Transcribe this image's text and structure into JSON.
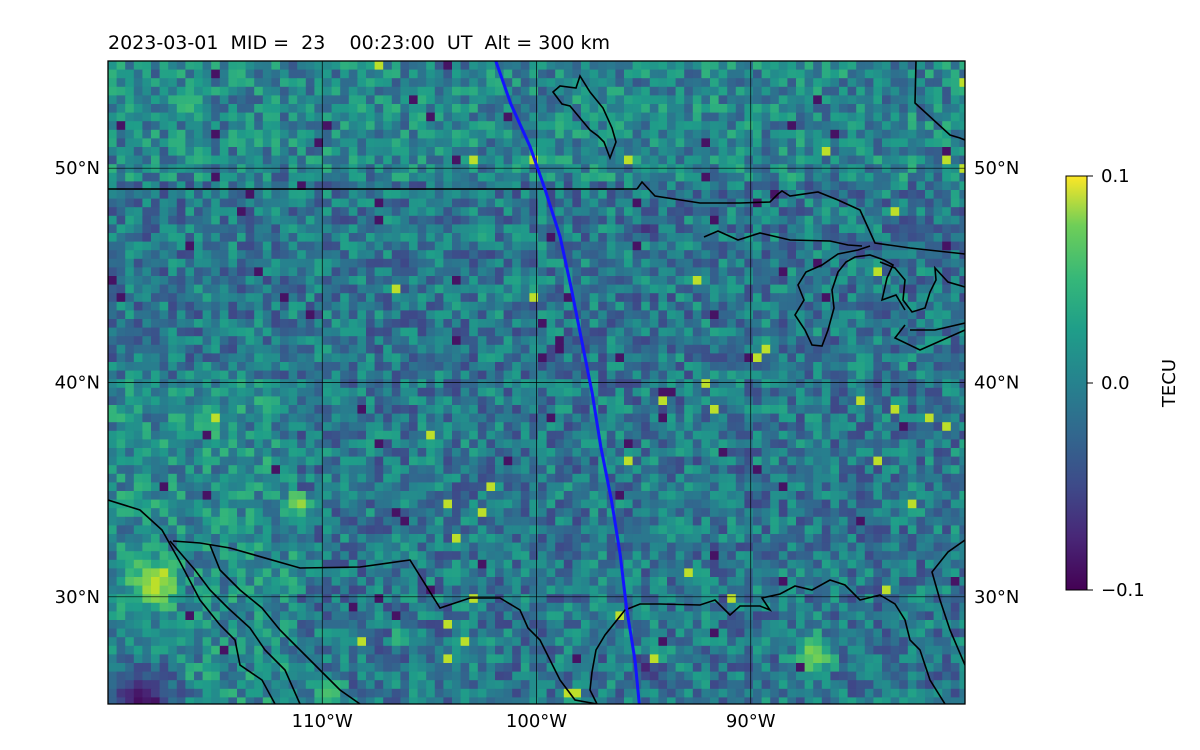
{
  "chart_data": {
    "type": "heatmap",
    "title": "2023-03-01  MID =  23    00:23:00  UT  Alt = 300 km",
    "map_extent": {
      "lon": [
        -120,
        -80
      ],
      "lat": [
        25,
        55
      ]
    },
    "lat_ticks": [
      {
        "value": 30,
        "label": "30°N"
      },
      {
        "value": 40,
        "label": "40°N"
      },
      {
        "value": 50,
        "label": "50°N"
      }
    ],
    "lon_ticks": [
      {
        "value": -110,
        "label": "110°W"
      },
      {
        "value": -100,
        "label": "100°W"
      },
      {
        "value": -90,
        "label": "90°W"
      }
    ],
    "grid": true,
    "colorbar": {
      "label": "TECU",
      "vmin": -0.1,
      "vmax": 0.1,
      "ticks": [
        {
          "value": 0.1,
          "label": "0.1"
        },
        {
          "value": 0.0,
          "label": "0.0"
        },
        {
          "value": -0.1,
          "label": "−0.1"
        }
      ],
      "colormap": "viridis",
      "position": "right"
    },
    "track": {
      "color": "#1414ff",
      "points": [
        [
          -101.9,
          55
        ],
        [
          -101.2,
          53
        ],
        [
          -100.3,
          51
        ],
        [
          -99.6,
          49
        ],
        [
          -98.9,
          46.8
        ],
        [
          -98.4,
          44.5
        ],
        [
          -97.9,
          42
        ],
        [
          -97.4,
          39.5
        ],
        [
          -97.0,
          37
        ],
        [
          -96.5,
          34.5
        ],
        [
          -96.1,
          32
        ],
        [
          -95.8,
          29.5
        ],
        [
          -95.4,
          27
        ],
        [
          -95.2,
          25
        ]
      ]
    },
    "colors": {
      "background_mean": "#31688e",
      "grid_line": "#000000",
      "coastline": "#000000"
    }
  }
}
